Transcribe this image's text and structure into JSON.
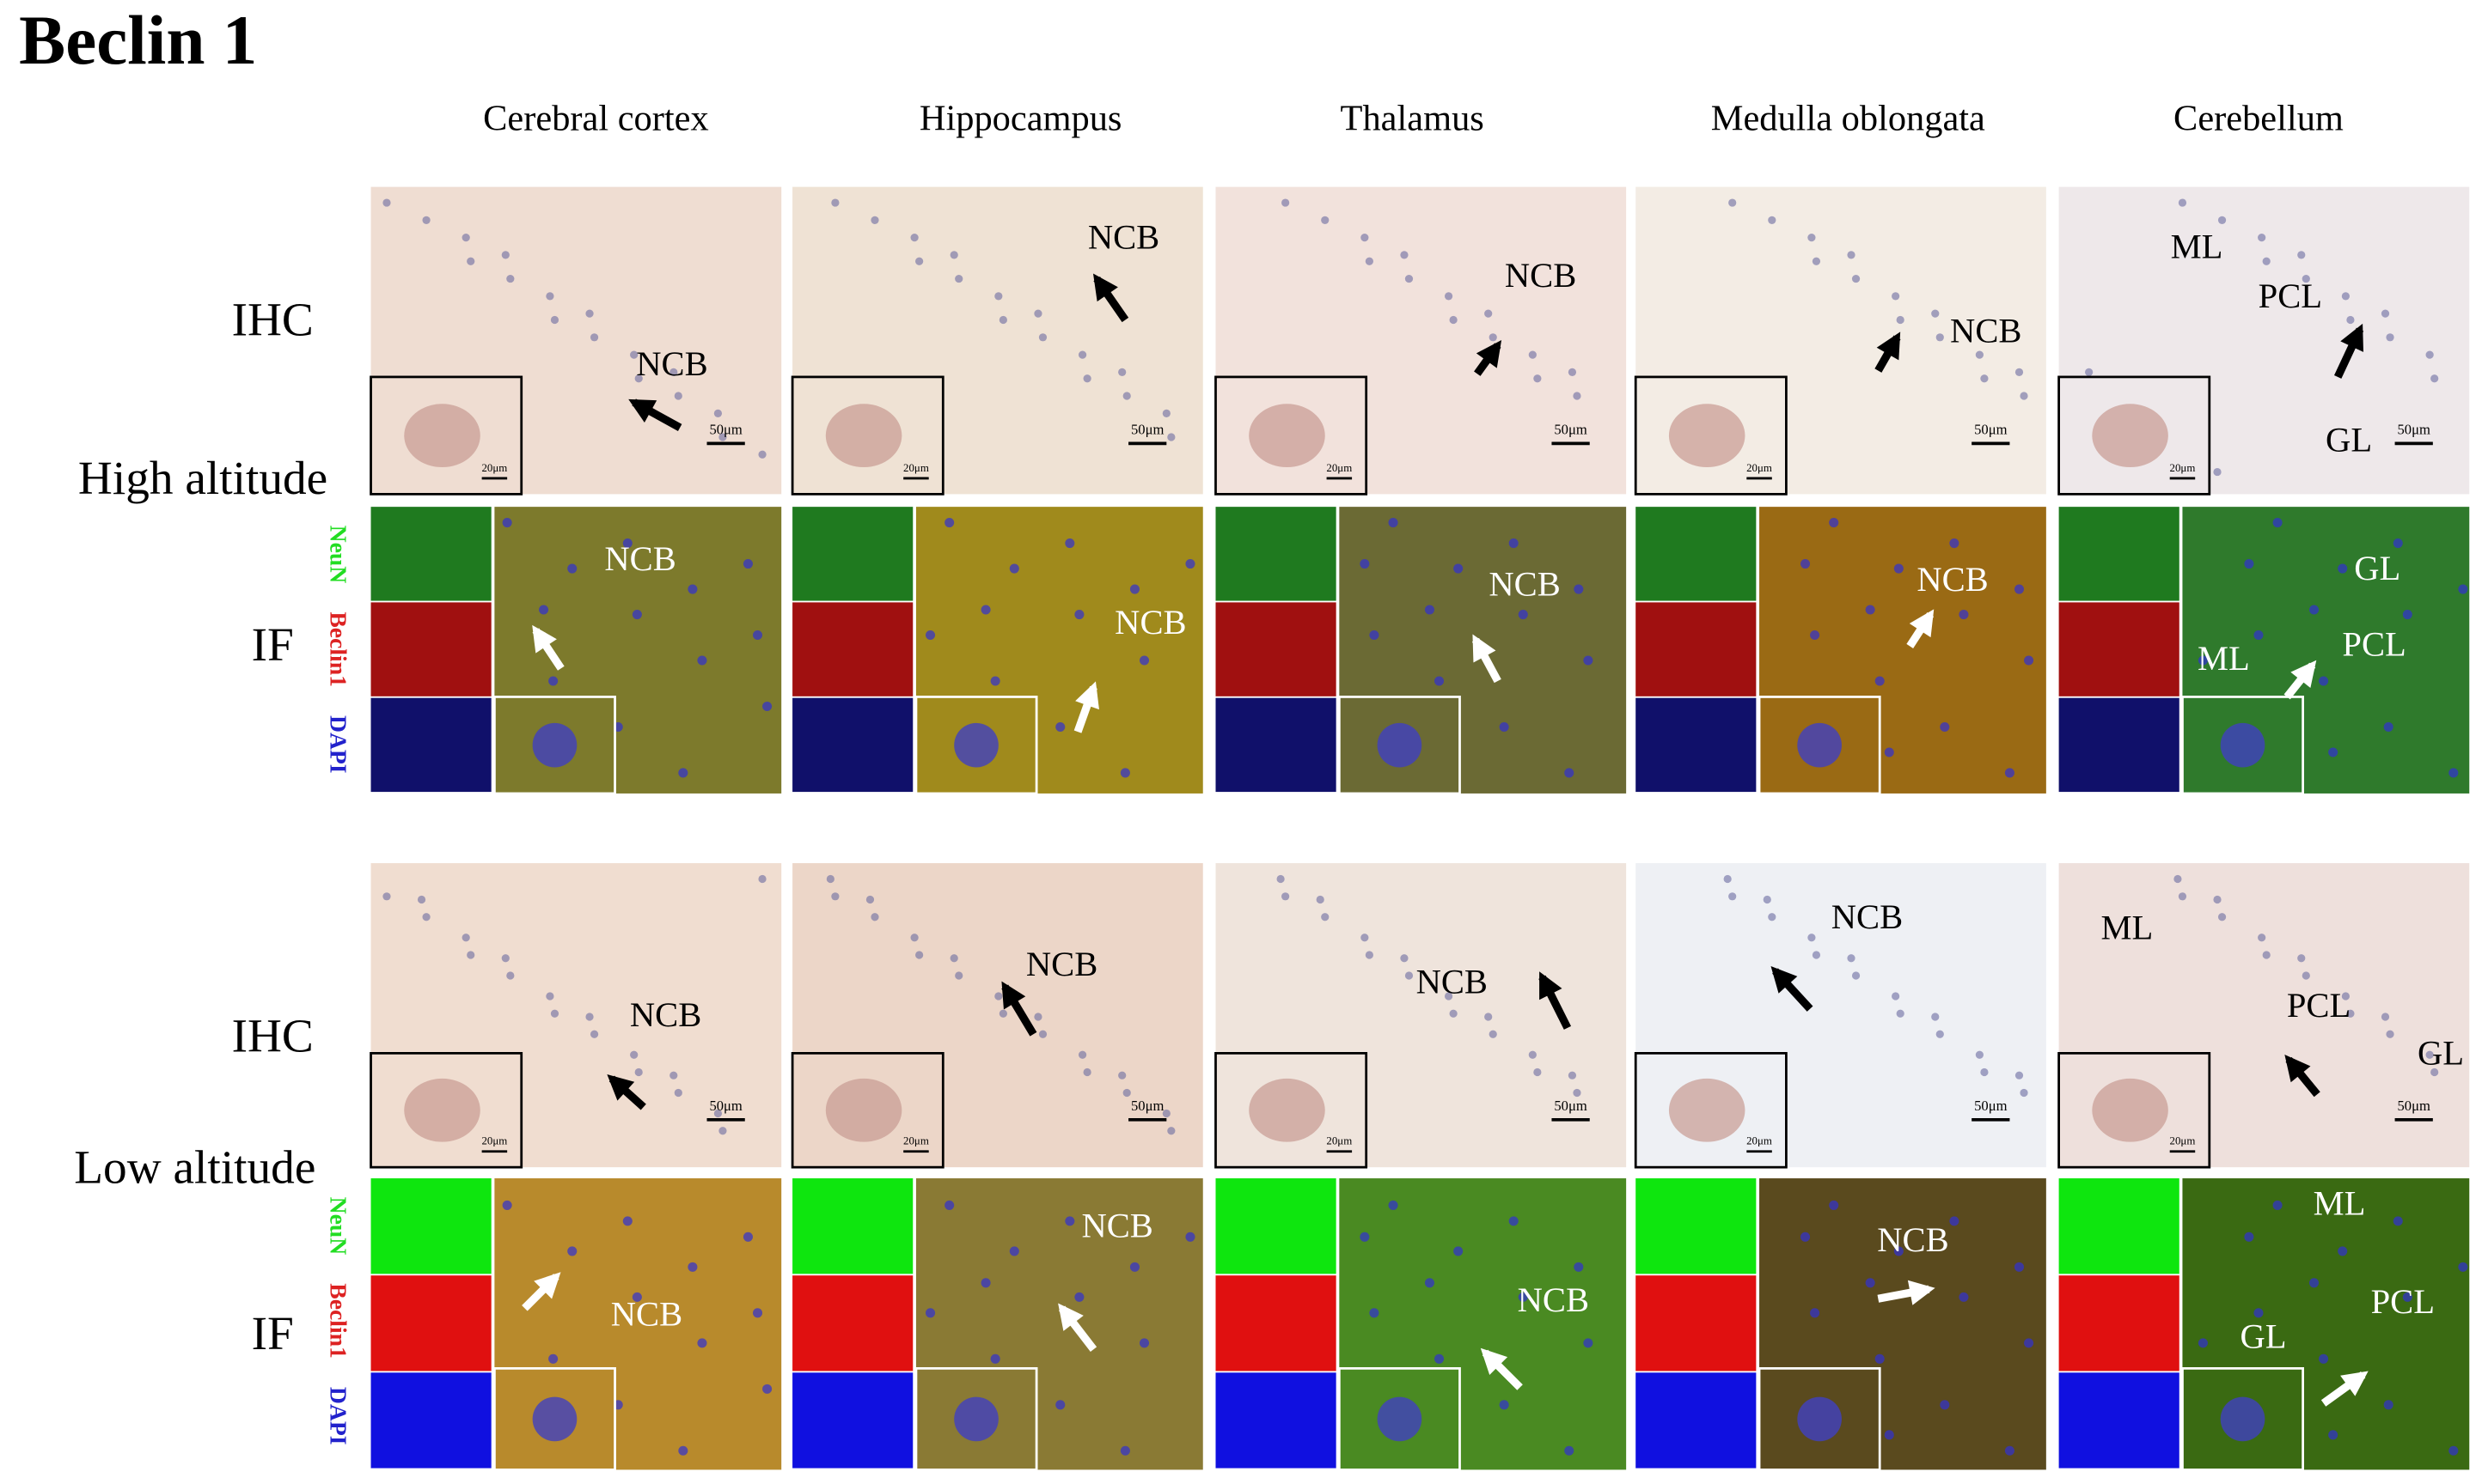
{
  "title": "Beclin 1",
  "columns": [
    "Cerebral cortex",
    "Hippocampus",
    "Thalamus",
    "Medulla oblongata",
    "Cerebellum"
  ],
  "groups": [
    {
      "name": "High altitude",
      "rows": [
        {
          "label": "IHC",
          "panels": [
            {
              "labels": [
                "NCB"
              ],
              "scale_bar": "50μm",
              "inset_scale_bar": "20μm"
            },
            {
              "labels": [
                "NCB"
              ],
              "scale_bar": "50μm",
              "inset_scale_bar": "20μm"
            },
            {
              "labels": [
                "NCB"
              ],
              "scale_bar": "50μm",
              "inset_scale_bar": "20μm"
            },
            {
              "labels": [
                "NCB"
              ],
              "scale_bar": "50μm",
              "inset_scale_bar": "20μm"
            },
            {
              "labels": [
                "ML",
                "PCL",
                "GL"
              ],
              "scale_bar": "50μm",
              "inset_scale_bar": "20μm"
            }
          ]
        },
        {
          "label": "IF",
          "channels": [
            "NeuN",
            "Beclin1",
            "DAPI"
          ],
          "panels": [
            {
              "labels": [
                "NCB"
              ]
            },
            {
              "labels": [
                "NCB"
              ]
            },
            {
              "labels": [
                "NCB"
              ]
            },
            {
              "labels": [
                "NCB"
              ]
            },
            {
              "labels": [
                "GL",
                "ML",
                "PCL"
              ]
            }
          ]
        }
      ]
    },
    {
      "name": "Low altitude",
      "rows": [
        {
          "label": "IHC",
          "panels": [
            {
              "labels": [
                "NCB"
              ],
              "scale_bar": "50μm",
              "inset_scale_bar": "20μm"
            },
            {
              "labels": [
                "NCB"
              ],
              "scale_bar": "50μm",
              "inset_scale_bar": "20μm"
            },
            {
              "labels": [
                "NCB"
              ],
              "scale_bar": "50μm",
              "inset_scale_bar": "20μm"
            },
            {
              "labels": [
                "NCB"
              ],
              "scale_bar": "50μm",
              "inset_scale_bar": "20μm"
            },
            {
              "labels": [
                "ML",
                "PCL",
                "GL"
              ],
              "scale_bar": "50μm",
              "inset_scale_bar": "20μm"
            }
          ]
        },
        {
          "label": "IF",
          "channels": [
            "NeuN",
            "Beclin1",
            "DAPI"
          ],
          "panels": [
            {
              "labels": [
                "NCB"
              ]
            },
            {
              "labels": [
                "NCB"
              ]
            },
            {
              "labels": [
                "NCB"
              ]
            },
            {
              "labels": [
                "NCB"
              ]
            },
            {
              "labels": [
                "ML",
                "PCL",
                "GL"
              ]
            }
          ]
        }
      ]
    }
  ]
}
